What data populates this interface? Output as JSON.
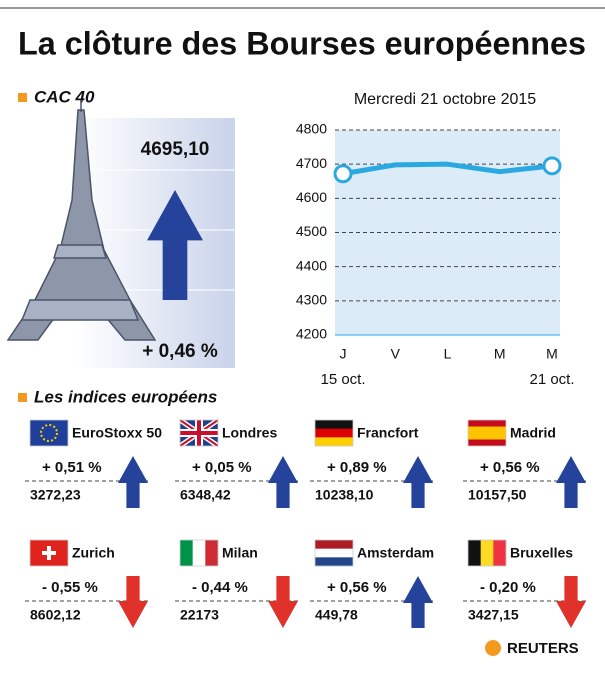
{
  "header": {
    "title": "La clôture des Bourses européennes"
  },
  "cac40": {
    "label": "CAC 40",
    "value": "4695,10",
    "change": "+ 0,46 %",
    "arrow": "up"
  },
  "chart_data": {
    "type": "line",
    "subtitle": "Mercredi 21 octobre 2015",
    "categories": [
      "J",
      "V",
      "L",
      "M",
      "M"
    ],
    "start_label": "15 oct.",
    "end_label": "21 oct.",
    "values": [
      4672,
      4698,
      4700,
      4678,
      4695.1
    ],
    "color": "#2aa9e0",
    "ylim": [
      4200,
      4800
    ],
    "yticks": [
      4200,
      4300,
      4400,
      4500,
      4600,
      4700,
      4800
    ],
    "grid": true
  },
  "indices": {
    "title": "Les indices européens",
    "up_color": "#26439b",
    "down_color": "#e0312b",
    "items": [
      {
        "name": "EuroStoxx 50",
        "change": "+ 0,51 %",
        "value": "3272,23",
        "arrow": "up"
      },
      {
        "name": "Londres",
        "change": "+ 0,05 %",
        "value": "6348,42",
        "arrow": "up"
      },
      {
        "name": "Francfort",
        "change": "+ 0,89 %",
        "value": "10238,10",
        "arrow": "up"
      },
      {
        "name": "Madrid",
        "change": "+ 0,56 %",
        "value": "10157,50",
        "arrow": "up"
      },
      {
        "name": "Zurich",
        "change": "- 0,55 %",
        "value": "8602,12",
        "arrow": "down"
      },
      {
        "name": "Milan",
        "change": "- 0,44 %",
        "value": "22173",
        "arrow": "down"
      },
      {
        "name": "Amsterdam",
        "change": "+ 0,56 %",
        "value": "449,78",
        "arrow": "up"
      },
      {
        "name": "Bruxelles",
        "change": "- 0,20 %",
        "value": "3427,15",
        "arrow": "down"
      }
    ]
  },
  "footer": {
    "source": "REUTERS"
  }
}
